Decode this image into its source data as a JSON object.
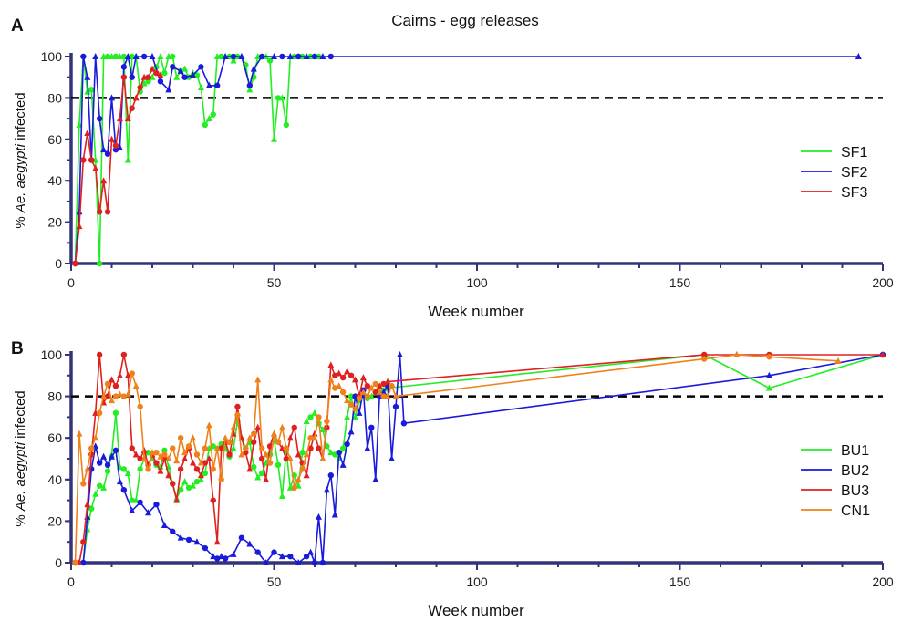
{
  "chart_data": [
    {
      "panel_label": "A",
      "title": "Cairns - egg releases",
      "type": "line",
      "xlabel": "Week number",
      "ylabel_prefix": "% ",
      "ylabel_italic": "Ae. aegypti",
      "ylabel_suffix": " infected",
      "xlim": [
        0,
        200
      ],
      "ylim": [
        0,
        100
      ],
      "xticks": [
        0,
        50,
        100,
        150,
        200
      ],
      "yticks": [
        0,
        20,
        40,
        60,
        80,
        100
      ],
      "threshold": 80,
      "legend_position": "right",
      "series": [
        {
          "name": "SF1",
          "color": "#22ee22",
          "x": [
            1,
            2,
            3,
            4,
            5,
            6,
            7,
            8,
            9,
            10,
            11,
            12,
            13,
            14,
            15,
            16,
            17,
            18,
            19,
            20,
            21,
            22,
            23,
            24,
            25,
            26,
            27,
            28,
            29,
            30,
            31,
            32,
            33,
            34,
            35,
            36,
            37,
            38,
            39,
            40,
            41,
            42,
            43,
            44,
            45,
            46,
            47,
            48,
            49,
            50,
            51,
            52,
            53,
            54,
            55,
            56,
            57,
            58,
            59,
            60,
            61
          ],
          "y": [
            0,
            67,
            100,
            83,
            84,
            50,
            0,
            100,
            100,
            100,
            100,
            100,
            100,
            50,
            100,
            100,
            83,
            87,
            88,
            90,
            95,
            100,
            92,
            100,
            100,
            90,
            93,
            94,
            90,
            92,
            91,
            85,
            67,
            70,
            72,
            100,
            100,
            100,
            100,
            98,
            100,
            100,
            96,
            84,
            90,
            100,
            100,
            100,
            98,
            60,
            80,
            80,
            67,
            100,
            100,
            100,
            100,
            100,
            100,
            100,
            100
          ]
        },
        {
          "name": "SF2",
          "color": "#1a1adc",
          "x": [
            1,
            2,
            3,
            4,
            5,
            6,
            7,
            8,
            9,
            10,
            11,
            12,
            13,
            14,
            15,
            16,
            18,
            20,
            22,
            24,
            25,
            27,
            28,
            30,
            32,
            34,
            36,
            38,
            40,
            42,
            44,
            45,
            47,
            50,
            52,
            54,
            56,
            58,
            60,
            62,
            64,
            194
          ],
          "y": [
            0,
            25,
            100,
            90,
            50,
            100,
            70,
            55,
            53,
            80,
            55,
            56,
            95,
            100,
            90,
            100,
            100,
            100,
            88,
            84,
            95,
            93,
            90,
            91,
            95,
            86,
            86,
            100,
            100,
            100,
            86,
            94,
            100,
            100,
            100,
            100,
            100,
            100,
            100,
            100,
            100,
            100
          ]
        },
        {
          "name": "SF3",
          "color": "#e02020",
          "x": [
            1,
            2,
            3,
            4,
            5,
            6,
            7,
            8,
            9,
            10,
            11,
            12,
            13,
            14,
            15,
            16,
            17,
            18,
            19,
            20,
            21,
            22
          ],
          "y": [
            0,
            18,
            50,
            63,
            50,
            46,
            25,
            40,
            25,
            60,
            57,
            70,
            90,
            70,
            75,
            80,
            85,
            90,
            90,
            94,
            92,
            91
          ]
        }
      ]
    },
    {
      "panel_label": "B",
      "type": "line",
      "xlabel": "Week number",
      "ylabel_prefix": "% ",
      "ylabel_italic": "Ae. aegypti",
      "ylabel_suffix": " infected",
      "xlim": [
        0,
        200
      ],
      "ylim": [
        0,
        100
      ],
      "xticks": [
        0,
        50,
        100,
        150,
        200
      ],
      "yticks": [
        0,
        20,
        40,
        60,
        80,
        100
      ],
      "threshold": 80,
      "legend_position": "right",
      "series": [
        {
          "name": "BU1",
          "color": "#22ee22",
          "x": [
            1,
            2,
            3,
            4,
            5,
            6,
            7,
            8,
            9,
            10,
            11,
            12,
            13,
            14,
            15,
            16,
            17,
            18,
            19,
            20,
            21,
            22,
            23,
            24,
            25,
            26,
            27,
            28,
            29,
            30,
            31,
            32,
            33,
            34,
            35,
            36,
            37,
            38,
            39,
            40,
            41,
            42,
            43,
            44,
            45,
            46,
            47,
            48,
            49,
            50,
            51,
            52,
            53,
            54,
            55,
            56,
            57,
            58,
            59,
            60,
            61,
            62,
            63,
            64,
            65,
            66,
            67,
            68,
            69,
            70,
            71,
            72,
            73,
            74,
            75,
            76,
            77,
            78,
            156,
            172,
            200
          ],
          "y": [
            0,
            0,
            0,
            16,
            26,
            33,
            37,
            36,
            44,
            52,
            72,
            46,
            45,
            43,
            30,
            30,
            45,
            50,
            53,
            50,
            47,
            46,
            54,
            46,
            38,
            31,
            35,
            39,
            36,
            37,
            39,
            40,
            43,
            55,
            56,
            55,
            57,
            55,
            51,
            55,
            68,
            60,
            55,
            58,
            46,
            41,
            43,
            48,
            52,
            59,
            47,
            32,
            54,
            36,
            42,
            37,
            53,
            68,
            70,
            72,
            67,
            64,
            56,
            53,
            52,
            50,
            55,
            70,
            80,
            70,
            78,
            82,
            79,
            80,
            82,
            82,
            83,
            84,
            100,
            84,
            100
          ]
        },
        {
          "name": "BU2",
          "color": "#1a1adc",
          "x": [
            1,
            2,
            3,
            4,
            5,
            6,
            7,
            8,
            9,
            10,
            11,
            12,
            13,
            15,
            17,
            19,
            21,
            23,
            25,
            27,
            29,
            31,
            33,
            35,
            36,
            37,
            38,
            40,
            42,
            44,
            46,
            48,
            50,
            52,
            54,
            56,
            58,
            59,
            60,
            61,
            62,
            63,
            64,
            65,
            66,
            67,
            68,
            69,
            70,
            71,
            72,
            73,
            74,
            75,
            76,
            77,
            78,
            79,
            80,
            81,
            82,
            172,
            200
          ],
          "y": [
            0,
            0,
            0,
            22,
            45,
            56,
            48,
            51,
            47,
            51,
            54,
            39,
            35,
            25,
            29,
            24,
            28,
            18,
            15,
            12,
            11,
            10,
            7,
            3,
            2,
            3,
            2,
            4,
            12,
            9,
            5,
            0,
            5,
            3,
            3,
            0,
            3,
            5,
            0,
            22,
            0,
            35,
            42,
            23,
            53,
            47,
            57,
            63,
            80,
            72,
            83,
            55,
            65,
            40,
            80,
            82,
            85,
            50,
            75,
            100,
            67,
            90,
            100
          ]
        },
        {
          "name": "BU3",
          "color": "#e02020",
          "x": [
            1,
            2,
            3,
            4,
            5,
            6,
            7,
            8,
            9,
            10,
            11,
            12,
            13,
            14,
            15,
            16,
            17,
            18,
            19,
            20,
            21,
            22,
            23,
            24,
            25,
            26,
            27,
            28,
            29,
            30,
            31,
            32,
            33,
            34,
            35,
            36,
            37,
            38,
            39,
            40,
            41,
            42,
            43,
            44,
            45,
            46,
            47,
            48,
            49,
            50,
            51,
            52,
            53,
            54,
            55,
            56,
            57,
            58,
            59,
            60,
            61,
            62,
            63,
            64,
            65,
            66,
            67,
            68,
            69,
            70,
            71,
            72,
            73,
            74,
            75,
            76,
            77,
            78,
            156,
            164,
            172,
            200
          ],
          "y": [
            0,
            0,
            10,
            28,
            52,
            72,
            100,
            77,
            80,
            88,
            85,
            90,
            100,
            90,
            55,
            52,
            50,
            54,
            47,
            52,
            48,
            44,
            50,
            42,
            38,
            30,
            45,
            50,
            55,
            48,
            45,
            42,
            48,
            50,
            30,
            10,
            55,
            58,
            52,
            62,
            75,
            60,
            53,
            45,
            58,
            65,
            50,
            40,
            56,
            62,
            58,
            55,
            50,
            60,
            65,
            52,
            48,
            42,
            55,
            62,
            55,
            50,
            65,
            95,
            90,
            91,
            89,
            92,
            90,
            88,
            80,
            89,
            85,
            84,
            82,
            85,
            86,
            87,
            100,
            100,
            100,
            100
          ]
        },
        {
          "name": "CN1",
          "color": "#f0801a",
          "x": [
            1,
            2,
            3,
            4,
            5,
            6,
            7,
            8,
            9,
            10,
            11,
            12,
            13,
            14,
            15,
            16,
            17,
            18,
            19,
            20,
            21,
            22,
            23,
            24,
            25,
            26,
            27,
            28,
            29,
            30,
            31,
            32,
            33,
            34,
            35,
            36,
            37,
            38,
            39,
            40,
            41,
            42,
            43,
            44,
            45,
            46,
            47,
            48,
            49,
            50,
            51,
            52,
            53,
            54,
            55,
            56,
            57,
            58,
            59,
            60,
            61,
            62,
            63,
            64,
            65,
            66,
            67,
            68,
            69,
            70,
            71,
            72,
            73,
            74,
            75,
            76,
            77,
            78,
            79,
            80,
            156,
            164,
            172,
            189
          ],
          "y": [
            0,
            62,
            38,
            45,
            55,
            60,
            72,
            80,
            86,
            78,
            80,
            81,
            80,
            81,
            91,
            85,
            75,
            50,
            45,
            53,
            53,
            51,
            52,
            50,
            55,
            49,
            60,
            53,
            56,
            60,
            52,
            48,
            55,
            66,
            45,
            55,
            40,
            60,
            58,
            65,
            71,
            52,
            55,
            60,
            62,
            88,
            55,
            52,
            48,
            62,
            58,
            65,
            55,
            50,
            36,
            40,
            45,
            52,
            60,
            60,
            70,
            50,
            68,
            88,
            84,
            85,
            82,
            78,
            76,
            74,
            79,
            82,
            80,
            84,
            86,
            82,
            80,
            80,
            85,
            80,
            98,
            100,
            99,
            97
          ]
        }
      ]
    }
  ]
}
